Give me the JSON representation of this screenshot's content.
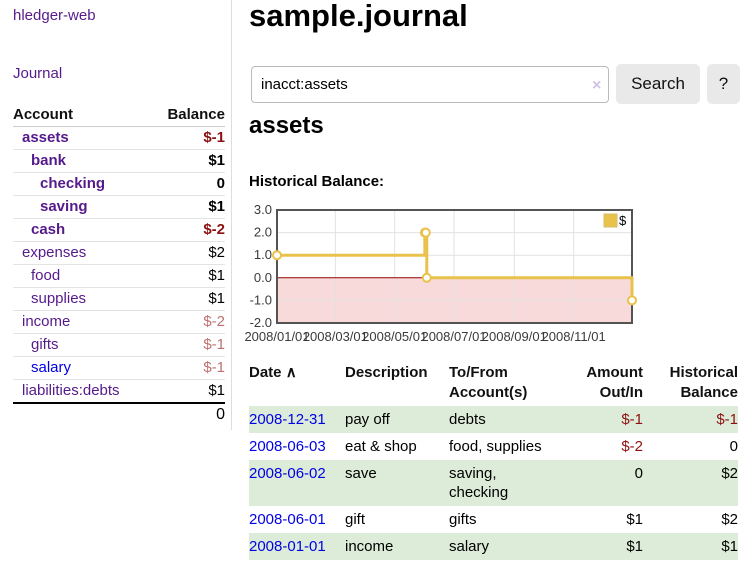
{
  "sidebar": {
    "app_title": "hledger-web",
    "journal_link": "Journal",
    "header": {
      "account": "Account",
      "balance": "Balance"
    },
    "accounts": [
      {
        "name": "assets",
        "balance": "$-1"
      },
      {
        "name": "bank",
        "balance": "$1"
      },
      {
        "name": "checking",
        "balance": "0"
      },
      {
        "name": "saving",
        "balance": "$1"
      },
      {
        "name": "cash",
        "balance": "$-2"
      },
      {
        "name": "expenses",
        "balance": "$2"
      },
      {
        "name": "food",
        "balance": "$1"
      },
      {
        "name": "supplies",
        "balance": "$1"
      },
      {
        "name": "income",
        "balance": "$-2"
      },
      {
        "name": "gifts",
        "balance": "$-1"
      },
      {
        "name": "salary",
        "balance": "$-1"
      },
      {
        "name": "liabilities:debts",
        "balance": "$1"
      }
    ],
    "total": "0"
  },
  "main": {
    "title": "sample.journal",
    "account_heading": "assets",
    "chart_heading": "Historical Balance:"
  },
  "search": {
    "query": "inacct:assets",
    "clear_icon": "×",
    "button_label": "Search",
    "help_label": "?"
  },
  "chart_data": {
    "type": "line",
    "step": true,
    "title": "Historical Balance",
    "legend": [
      {
        "label": "$",
        "color": "#e8c24a",
        "position": "top-right"
      }
    ],
    "ylim": [
      -2,
      3
    ],
    "y_ticks": [
      "3.0",
      "2.0",
      "1.0",
      "0.0",
      "-1.0",
      "-2.0"
    ],
    "x_ticks": [
      "2008/01/01",
      "2008/03/01",
      "2008/05/01",
      "2008/07/01",
      "2008/09/01",
      "2008/11/01"
    ],
    "points": [
      {
        "date": "2008-01-01",
        "y": 1
      },
      {
        "date": "2008-06-01",
        "y": 2
      },
      {
        "date": "2008-06-02",
        "y": 2
      },
      {
        "date": "2008-06-03",
        "y": 0
      },
      {
        "date": "2008-12-31",
        "y": -1
      }
    ],
    "grid": true,
    "colors": {
      "line": "#e8c24a",
      "zero_line": "#8b0000",
      "negative_region": "#f9dada",
      "border": "#545454",
      "gridline": "#e2e2e2"
    }
  },
  "register": {
    "headers": {
      "date": "Date",
      "sort_icon": "∧",
      "description": "Description",
      "accounts": "To/From Account(s)",
      "amount": "Amount Out/In",
      "balance": "Historical Balance"
    },
    "rows": [
      {
        "date": "2008-12-31",
        "description": "pay off",
        "accounts": "debts",
        "amount": "$-1",
        "balance": "$-1"
      },
      {
        "date": "2008-06-03",
        "description": "eat & shop",
        "accounts": "food, supplies",
        "amount": "$-2",
        "balance": "0"
      },
      {
        "date": "2008-06-02",
        "description": "save",
        "accounts": "saving, checking",
        "amount": "0",
        "balance": "$2"
      },
      {
        "date": "2008-06-01",
        "description": "gift",
        "accounts": "gifts",
        "amount": "$1",
        "balance": "$2"
      },
      {
        "date": "2008-01-01",
        "description": "income",
        "accounts": "salary",
        "amount": "$1",
        "balance": "$1"
      }
    ]
  }
}
